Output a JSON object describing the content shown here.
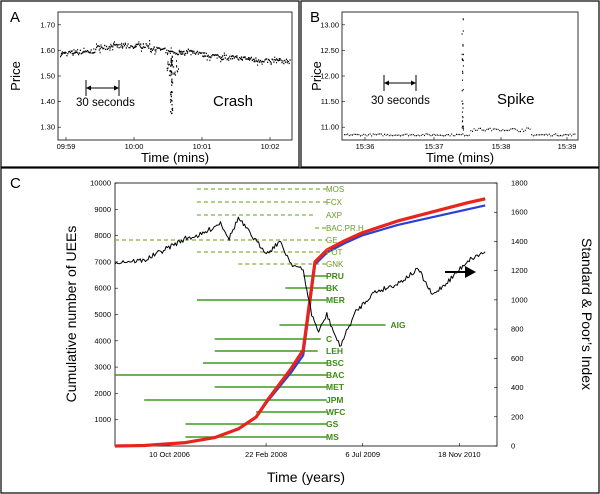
{
  "colors": {
    "buy": "#e8241c",
    "sell": "#2b3fd6",
    "green_dash": "#7fb23a",
    "green_solid": "#3f9a1f",
    "index": "#000000"
  },
  "panel_a": {
    "letter": "A",
    "ylabel": "Price",
    "xlabel": "Time (mins)",
    "label": "Crash",
    "interval": "30 seconds",
    "chart_data": {
      "type": "scatter",
      "title": "",
      "xlabel": "Time (mins)",
      "ylabel": "Price",
      "x_ticks": [
        "09:59",
        "10:00",
        "10:01",
        "10:02"
      ],
      "y_ticks": [
        "1.30",
        "1.40",
        "1.50",
        "1.60",
        "1.70"
      ],
      "ylim": [
        1.25,
        1.75
      ],
      "annotation": "Crash",
      "interval": "30 seconds"
    }
  },
  "panel_b": {
    "letter": "B",
    "ylabel": "Price",
    "xlabel": "Time (mins)",
    "label": "Spike",
    "interval": "30 seconds",
    "chart_data": {
      "type": "scatter",
      "title": "",
      "xlabel": "Time (mins)",
      "ylabel": "Price",
      "x_ticks": [
        "15:36",
        "15:37",
        "15:38",
        "15:39"
      ],
      "y_ticks": [
        "11.00",
        "11.50",
        "12.00",
        "12.50",
        "13.00"
      ],
      "ylim": [
        10.75,
        13.25
      ],
      "annotation": "Spike",
      "interval": "30 seconds"
    }
  },
  "panel_c": {
    "letter": "C",
    "ylabel_left": "Cumulative number of UEEs",
    "ylabel_right": "Standard & Poor’s Index",
    "xlabel": "Time (years)",
    "chart_data": {
      "type": "line",
      "title": "",
      "xlabel": "Time (years)",
      "ylabel": "Cumulative number of UEEs",
      "ylabel_right": "Standard & Poor’s Index",
      "x_ticks": [
        "10 Oct 2006",
        "22 Feb 2008",
        "6 Jul 2009",
        "18 Nov 2010"
      ],
      "x_tick_dates": [
        "2006-10-10",
        "2008-02-22",
        "2009-07-06",
        "2010-11-18"
      ],
      "xlim": [
        "2006-01-01",
        "2011-06-01"
      ],
      "ylim_left": [
        0,
        10000
      ],
      "y_ticks_left": [
        1000,
        2000,
        3000,
        4000,
        5000,
        6000,
        7000,
        8000,
        9000,
        10000
      ],
      "ylim_right": [
        0,
        1800
      ],
      "y_ticks_right": [
        0,
        200,
        400,
        600,
        800,
        1000,
        1200,
        1400,
        1600,
        1800
      ],
      "series": [
        {
          "role": "cumulative UEEs (red)",
          "axis": "left",
          "x": [
            "2006-01-01",
            "2006-06-01",
            "2007-01-01",
            "2007-06-01",
            "2007-10-01",
            "2008-01-01",
            "2008-03-01",
            "2008-05-01",
            "2008-07-01",
            "2008-09-01",
            "2008-10-01",
            "2008-11-01",
            "2009-01-01",
            "2009-04-01",
            "2009-07-01",
            "2010-01-01",
            "2010-07-01",
            "2011-01-01",
            "2011-04-01"
          ],
          "values": [
            0,
            20,
            130,
            320,
            650,
            1100,
            1750,
            2350,
            2950,
            3650,
            5300,
            7000,
            7450,
            7800,
            8100,
            8550,
            8900,
            9250,
            9400
          ]
        },
        {
          "role": "cumulative UEEs (blue)",
          "axis": "left",
          "x": [
            "2006-01-01",
            "2006-06-01",
            "2007-01-01",
            "2007-06-01",
            "2007-10-01",
            "2008-01-01",
            "2008-03-01",
            "2008-05-01",
            "2008-07-01",
            "2008-09-01",
            "2008-10-01",
            "2008-11-01",
            "2009-01-01",
            "2009-04-01",
            "2009-07-01",
            "2010-01-01",
            "2010-07-01",
            "2011-01-01",
            "2011-04-01"
          ],
          "values": [
            0,
            20,
            130,
            320,
            640,
            1080,
            1700,
            2250,
            2800,
            3450,
            5100,
            6900,
            7350,
            7700,
            8000,
            8400,
            8700,
            9000,
            9150
          ]
        },
        {
          "role": "Standard & Poor's Index (black)",
          "axis": "right",
          "x": [
            "2006-01-01",
            "2006-06-01",
            "2007-01-01",
            "2007-04-01",
            "2007-07-01",
            "2007-08-15",
            "2007-10-01",
            "2008-01-01",
            "2008-03-01",
            "2008-05-01",
            "2008-07-01",
            "2008-09-01",
            "2008-10-15",
            "2008-11-20",
            "2009-01-01",
            "2009-03-09",
            "2009-06-01",
            "2009-09-01",
            "2010-01-01",
            "2010-04-20",
            "2010-07-01",
            "2010-10-01",
            "2011-01-01",
            "2011-04-01"
          ],
          "values": [
            1260,
            1270,
            1420,
            1450,
            1530,
            1420,
            1560,
            1400,
            1320,
            1400,
            1250,
            1200,
            900,
            780,
            900,
            680,
            920,
            1050,
            1110,
            1210,
            1030,
            1140,
            1270,
            1330
          ]
        }
      ],
      "companies_dashed": [
        {
          "name": "MOS",
          "start": "2007-03-01",
          "end": "2009-01-01"
        },
        {
          "name": "FCX",
          "start": "2007-03-01",
          "end": "2009-01-01"
        },
        {
          "name": "AXP",
          "start": "2007-03-01",
          "end": "2008-11-01"
        },
        {
          "name": "BAC.PR.H",
          "start": "2008-11-01",
          "end": "2009-01-01"
        },
        {
          "name": "GE",
          "start": "2006-01-01",
          "end": "2009-01-01"
        },
        {
          "name": "POT",
          "start": "2007-03-01",
          "end": "2008-12-01"
        },
        {
          "name": "GNK",
          "start": "2007-10-01",
          "end": "2009-01-01"
        }
      ],
      "companies_solid": [
        {
          "name": "PRU",
          "start": "2008-09-01",
          "end": "2009-01-01"
        },
        {
          "name": "BK",
          "start": "2008-06-01",
          "end": "2009-01-01"
        },
        {
          "name": "MER",
          "start": "2007-03-01",
          "end": "2009-01-01"
        },
        {
          "name": "AIG",
          "start": "2008-05-01",
          "end": "2009-11-01"
        },
        {
          "name": "C",
          "start": "2007-06-01",
          "end": "2008-12-01"
        },
        {
          "name": "LEH",
          "start": "2007-06-01",
          "end": "2008-11-15"
        },
        {
          "name": "BSC",
          "start": "2007-04-01",
          "end": "2009-01-01"
        },
        {
          "name": "BAC",
          "start": "2006-01-01",
          "end": "2009-01-01"
        },
        {
          "name": "MET",
          "start": "2007-06-01",
          "end": "2009-01-01"
        },
        {
          "name": "JPM",
          "start": "2006-06-01",
          "end": "2009-01-01"
        },
        {
          "name": "WFC",
          "start": "2008-01-01",
          "end": "2009-01-01"
        },
        {
          "name": "GS",
          "start": "2007-01-01",
          "end": "2009-01-01"
        },
        {
          "name": "MS",
          "start": "2007-01-01",
          "end": "2009-01-01"
        }
      ]
    }
  }
}
